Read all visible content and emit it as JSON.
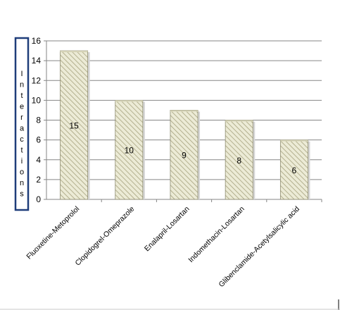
{
  "chart_data": {
    "type": "bar",
    "categories": [
      "Fluoxetine-Metoprolol",
      "Clopidogrel-Omeprazole",
      "Enalapril-Losartan",
      "Indomethacin-Losartan",
      "Glibenclamide-Acetylsalicylic acid"
    ],
    "values": [
      15,
      10,
      9,
      8,
      6
    ],
    "data_labels": [
      "15",
      "10",
      "9",
      "8",
      "6"
    ],
    "title": "",
    "xlabel": "",
    "ylabel": "Interactions",
    "ylim": [
      0,
      16
    ],
    "yticks": [
      "0",
      "2",
      "4",
      "6",
      "8",
      "10",
      "12",
      "14",
      "16"
    ],
    "grid": true,
    "legend": "none",
    "colors": {
      "bar_fill": "#ecebd6",
      "bar_hatch": "#a6a27e",
      "bar_border": "#8c8a6e",
      "gridline": "#868686",
      "ylabel_box": "#1f3d7a"
    }
  }
}
